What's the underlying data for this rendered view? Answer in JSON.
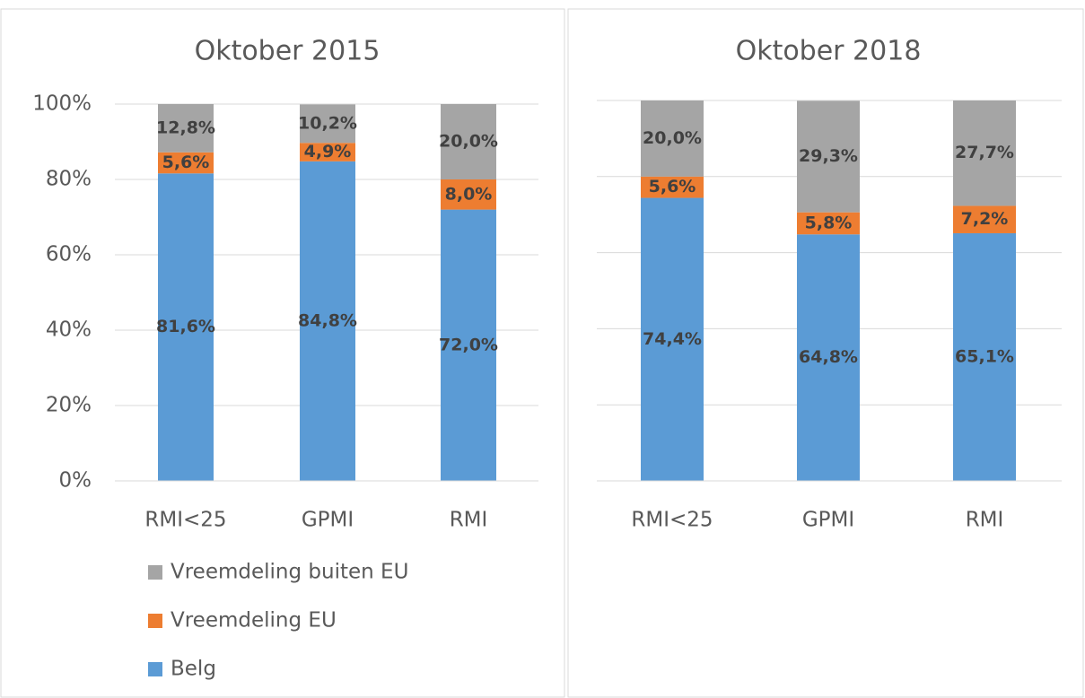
{
  "chart_data": [
    {
      "type": "stacked_bar",
      "title": "Oktober 2015",
      "categories": [
        "RMI<25",
        "GPMI",
        "RMI"
      ],
      "series": [
        {
          "name": "Belg",
          "color": "#5b9bd5",
          "values": [
            81.6,
            84.8,
            72.0
          ],
          "value_labels": [
            "81,6%",
            "84,8%",
            "72,0%"
          ]
        },
        {
          "name": "Vreemdeling EU",
          "color": "#ed7d31",
          "values": [
            5.6,
            4.9,
            8.0
          ],
          "value_labels": [
            "5,6%",
            "4,9%",
            "8,0%"
          ]
        },
        {
          "name": "Vreemdeling buiten EU",
          "color": "#a5a5a5",
          "values": [
            12.8,
            10.2,
            20.0
          ],
          "value_labels": [
            "12,8%",
            "10,2%",
            "20,0%"
          ]
        }
      ],
      "ylim": [
        0,
        100
      ],
      "yticks": [
        {
          "value": 0,
          "label": "0%"
        },
        {
          "value": 20,
          "label": "20%"
        },
        {
          "value": 40,
          "label": "40%"
        },
        {
          "value": 60,
          "label": "60%"
        },
        {
          "value": 80,
          "label": "80%"
        },
        {
          "value": 100,
          "label": "100%"
        }
      ],
      "grid": true,
      "legend": "bottom"
    },
    {
      "type": "stacked_bar",
      "title": "Oktober 2018",
      "categories": [
        "RMI<25",
        "GPMI",
        "RMI"
      ],
      "series": [
        {
          "color": "#5b9bd5",
          "values": [
            74.4,
            64.8,
            65.1
          ],
          "value_labels": [
            "74,4%",
            "64,8%",
            "65,1%"
          ]
        },
        {
          "color": "#ed7d31",
          "values": [
            5.6,
            5.8,
            7.2
          ],
          "value_labels": [
            "5,6%",
            "5,8%",
            "7,2%"
          ]
        },
        {
          "color": "#a5a5a5",
          "values": [
            20.0,
            29.3,
            27.7
          ],
          "value_labels": [
            "20,0%",
            "29,3%",
            "27,7%"
          ]
        }
      ],
      "ylim": [
        0,
        100
      ],
      "yticks": [
        0,
        20,
        40,
        60,
        80,
        100
      ],
      "ytick_labels": false,
      "grid": true,
      "legend": false
    }
  ]
}
